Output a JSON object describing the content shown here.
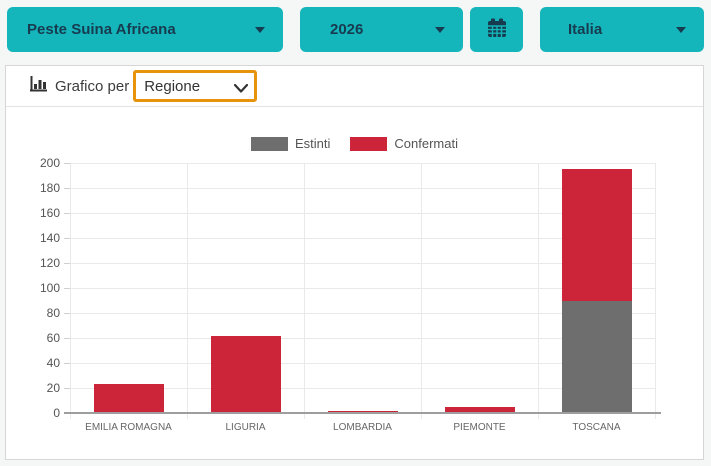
{
  "page": {
    "background": "#f5f6f6"
  },
  "toolbar": {
    "disease_label": "Peste Suina Africana",
    "year_label": "2026",
    "region_label": "Italia",
    "button_color": "#14b5bb",
    "button_text_color": "#173c4f"
  },
  "panel": {
    "header": {
      "label": "Grafico per",
      "select_value": "Regione",
      "select_highlight_color": "#e8930c"
    }
  },
  "chart_data": {
    "type": "bar",
    "stacked": true,
    "title": "",
    "categories": [
      "EMILIA ROMAGNA",
      "LIGURIA",
      "LOMBARDIA",
      "PIEMONTE",
      "TOSCANA"
    ],
    "series": [
      {
        "name": "Estinti",
        "color": "#6e6e6e",
        "values": [
          0,
          0,
          0,
          0,
          90
        ]
      },
      {
        "name": "Confermati",
        "color": "#cc2438",
        "values": [
          23,
          62,
          2,
          5,
          105
        ]
      }
    ],
    "ylim": [
      0,
      200
    ],
    "ytick_step": 20,
    "xlabel": "",
    "ylabel": "",
    "grid": true,
    "legend_position": "top",
    "grid_color": "#e9e9e9",
    "axis_line_color": "#9e9e9e"
  }
}
